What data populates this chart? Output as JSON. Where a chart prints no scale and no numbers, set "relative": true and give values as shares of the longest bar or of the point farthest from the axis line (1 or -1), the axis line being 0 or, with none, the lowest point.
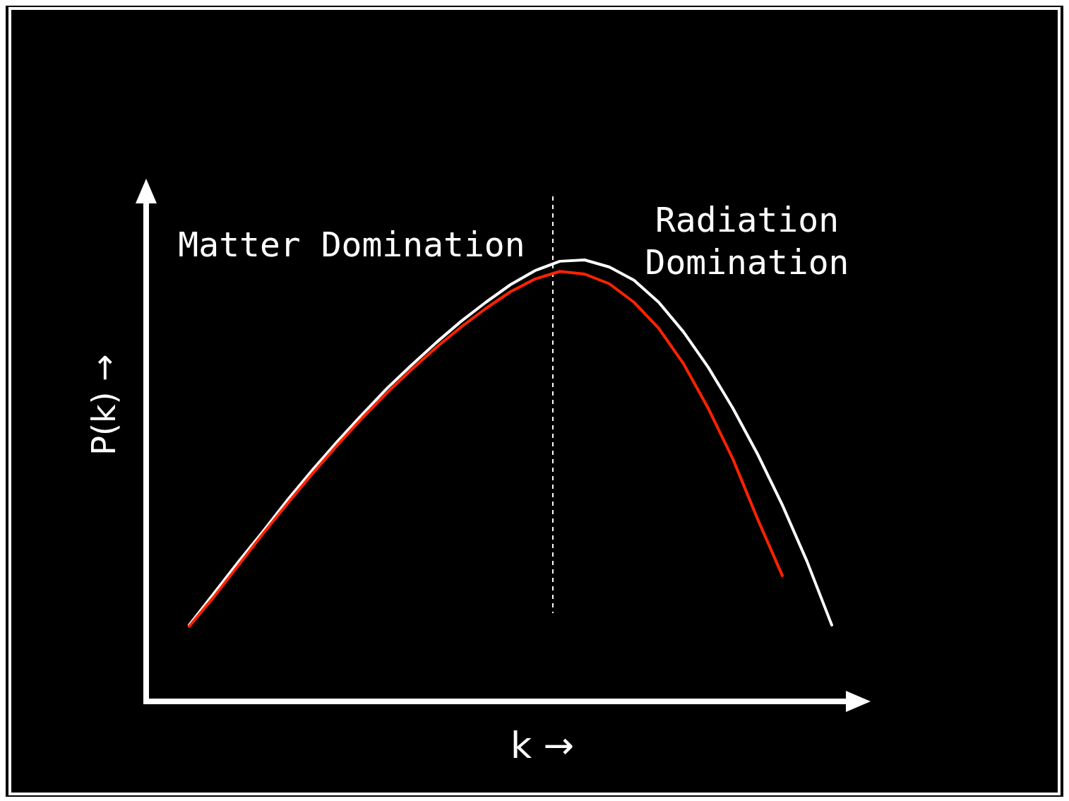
{
  "chart_data": {
    "type": "line",
    "relative": true,
    "xlabel": "k →",
    "ylabel": "P(k) →",
    "marker": "none",
    "line_style": "solid",
    "categories": [
      null,
      null,
      null,
      null,
      null,
      null,
      null,
      null,
      null,
      null,
      null,
      null,
      null,
      null,
      null,
      null,
      null,
      null,
      null,
      null,
      null,
      null,
      null,
      null,
      null,
      null,
      null
    ],
    "series": [
      {
        "color": "#ffffff",
        "values": [
          0.173,
          0.245,
          0.317,
          0.386,
          0.458,
          0.525,
          0.589,
          0.65,
          0.709,
          0.762,
          0.813,
          0.861,
          0.904,
          0.944,
          0.976,
          0.997,
          1,
          0.984,
          0.954,
          0.904,
          0.837,
          0.757,
          0.664,
          0.56,
          0.445,
          0.317,
          0.173
        ]
      },
      {
        "color": "#ff2200",
        "values": [
          0.17,
          0.237,
          0.309,
          0.381,
          0.45,
          0.517,
          0.581,
          0.642,
          0.699,
          0.752,
          0.802,
          0.848,
          0.89,
          0.928,
          0.957,
          0.974,
          0.968,
          0.946,
          0.904,
          0.845,
          0.765,
          0.664,
          0.549,
          0.413,
          0.285,
          null,
          null
        ]
      }
    ],
    "annotations": [
      "Matter Domination",
      "Radiation Domination"
    ]
  }
}
